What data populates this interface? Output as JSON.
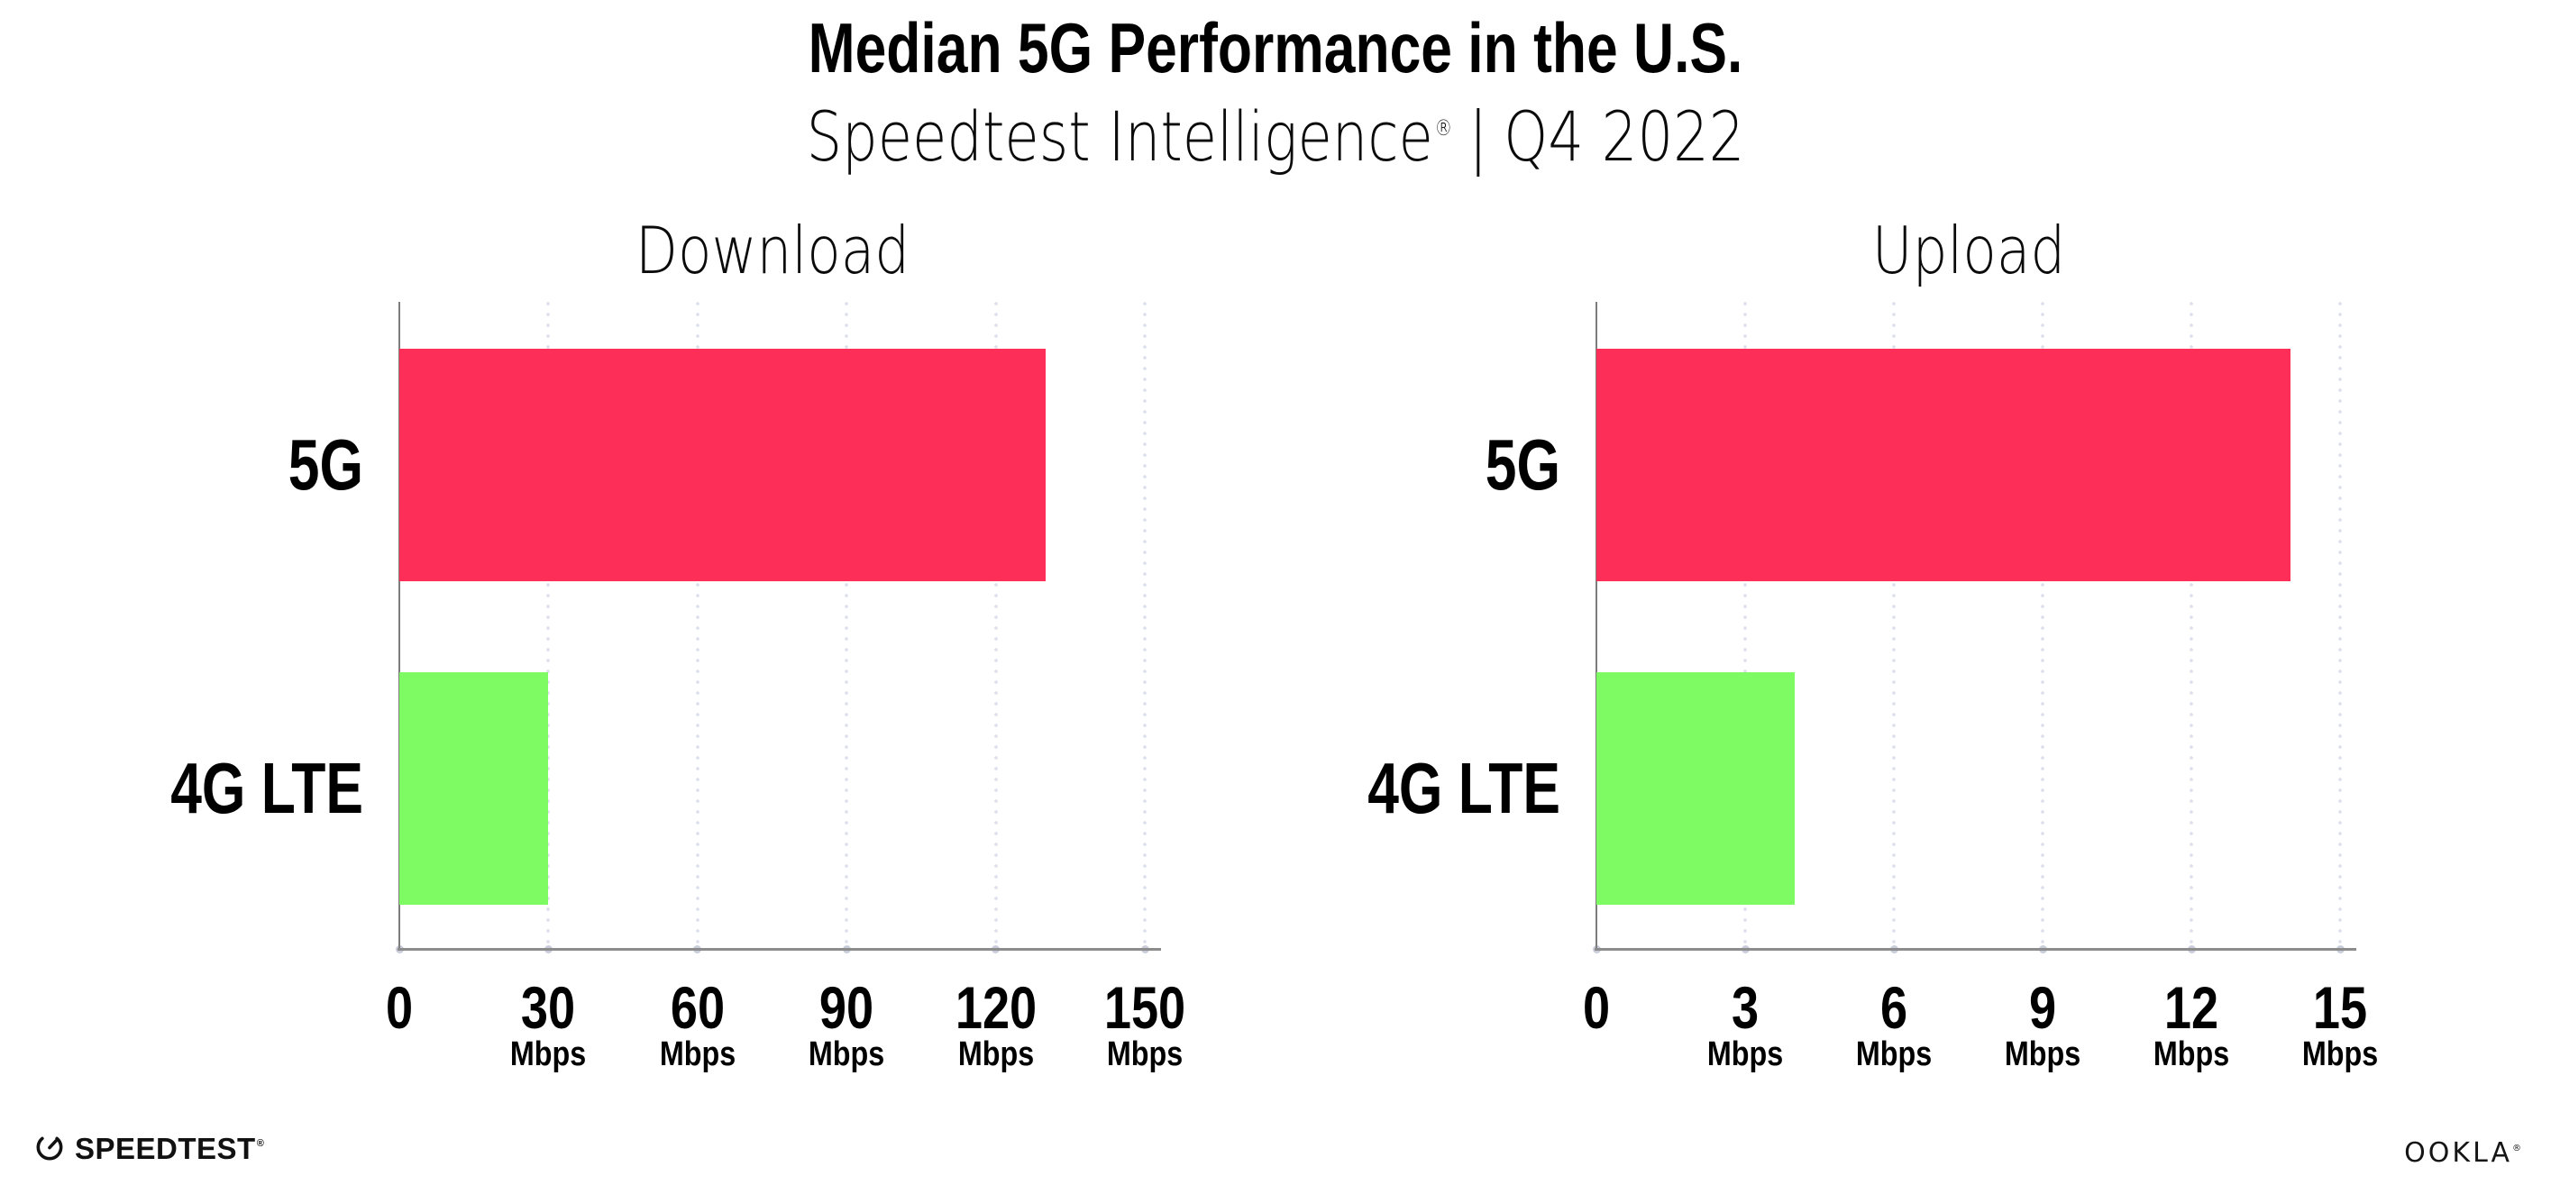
{
  "title": "Median 5G Performance in the U.S.",
  "subtitle": {
    "brand": "Speedtest Intelligence",
    "reg": "®",
    "separator": "|",
    "period": "Q4 2022"
  },
  "footer": {
    "speedtest_label": "SPEEDTEST",
    "speedtest_reg": "®",
    "ookla_label": "OOKLA",
    "ookla_reg": "®"
  },
  "colors": {
    "bar_5g": "#fd2e57",
    "bar_4g": "#7efb63",
    "grid_dot": "#dde0ec",
    "axis_line": "#8c8c8c",
    "axis_tick_dot": "#c9cdda",
    "text": "#000000"
  },
  "chart_data": [
    {
      "type": "bar",
      "orientation": "horizontal",
      "title": "Download",
      "categories": [
        "5G",
        "4G LTE"
      ],
      "values": [
        130,
        30
      ],
      "unit": "Mbps",
      "xlim": [
        0,
        150
      ],
      "xticks": [
        0,
        30,
        60,
        90,
        120,
        150
      ],
      "grid": "dotted-vertical",
      "legend": "none"
    },
    {
      "type": "bar",
      "orientation": "horizontal",
      "title": "Upload",
      "categories": [
        "5G",
        "4G LTE"
      ],
      "values": [
        14,
        4
      ],
      "unit": "Mbps",
      "xlim": [
        0,
        15
      ],
      "xticks": [
        0,
        3,
        6,
        9,
        12,
        15
      ],
      "grid": "dotted-vertical",
      "legend": "none"
    }
  ]
}
